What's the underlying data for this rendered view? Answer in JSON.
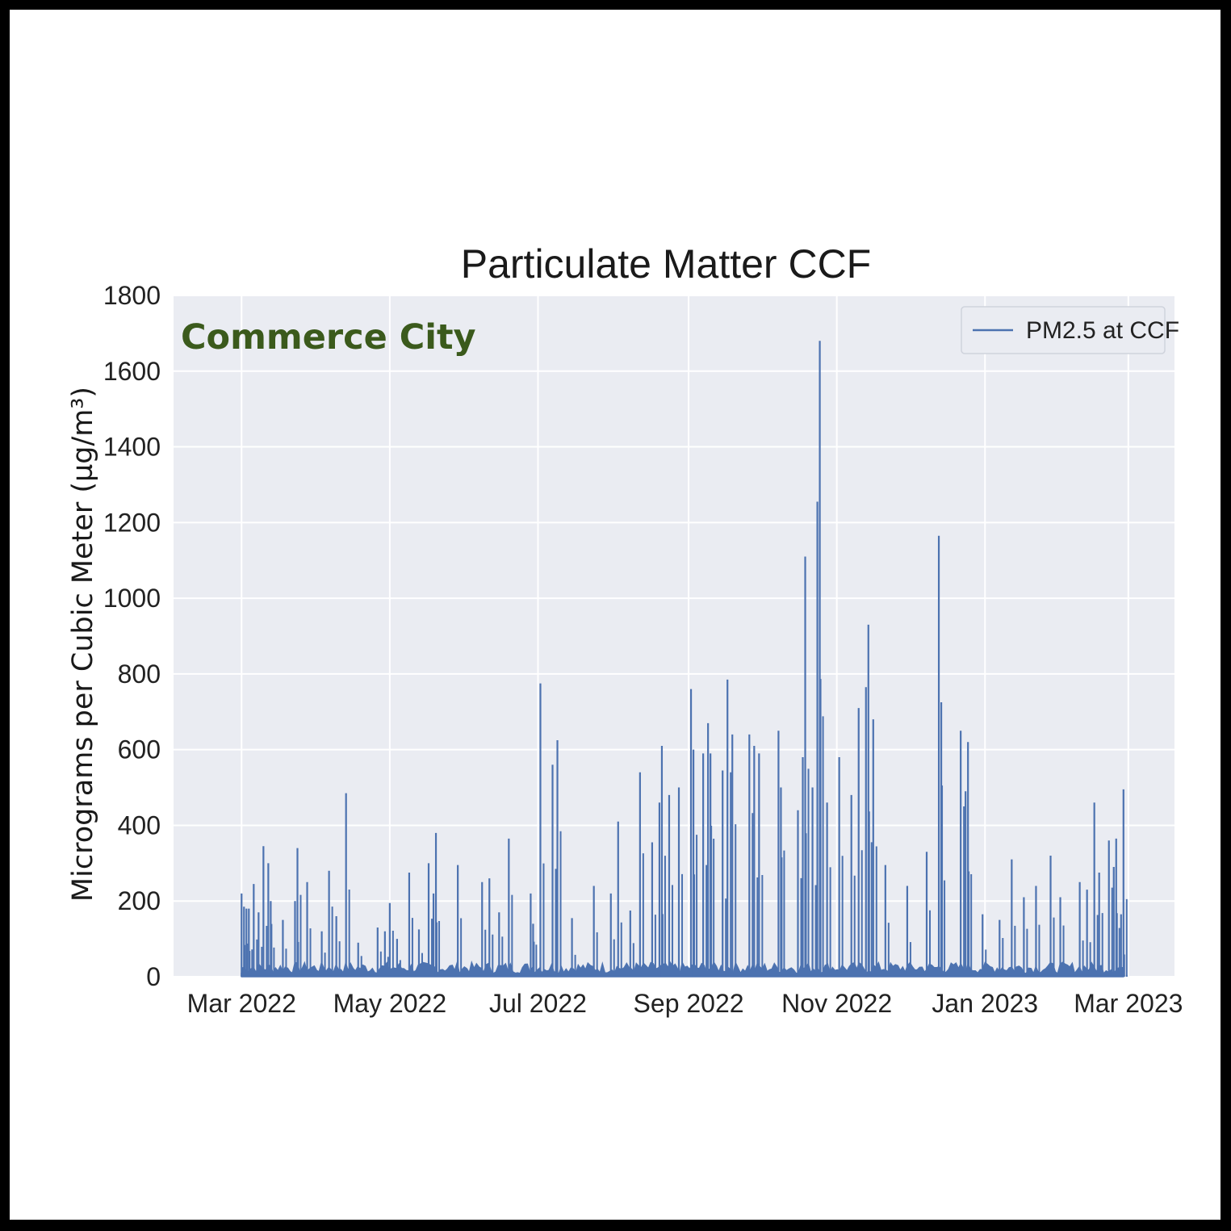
{
  "chart_data": {
    "type": "line",
    "title": "Particulate Matter CCF",
    "ylabel": "Micrograms per Cubic Meter (µg/m³)",
    "xlabel": "",
    "annotation": "Commerce City",
    "ylim": [
      0,
      1800
    ],
    "xlim": [
      "2022-02-01",
      "2023-03-20"
    ],
    "yticks": [
      0,
      200,
      400,
      600,
      800,
      1000,
      1200,
      1400,
      1600,
      1800
    ],
    "xticks": [
      {
        "date": "2022-03-01",
        "label": "Mar 2022"
      },
      {
        "date": "2022-05-01",
        "label": "May 2022"
      },
      {
        "date": "2022-07-01",
        "label": "Jul 2022"
      },
      {
        "date": "2022-09-01",
        "label": "Sep 2022"
      },
      {
        "date": "2022-11-01",
        "label": "Nov 2022"
      },
      {
        "date": "2023-01-01",
        "label": "Jan 2023"
      },
      {
        "date": "2023-03-01",
        "label": "Mar 2023"
      }
    ],
    "grid": true,
    "legend_position": "top-right",
    "series": [
      {
        "name": "PM2.5 at CCF",
        "color": "#4c72b0",
        "points": [
          [
            "2022-03-01",
            10
          ],
          [
            "2022-03-01",
            220
          ],
          [
            "2022-03-02",
            185
          ],
          [
            "2022-03-03",
            180
          ],
          [
            "2022-03-04",
            180
          ],
          [
            "2022-03-06",
            245
          ],
          [
            "2022-03-08",
            170
          ],
          [
            "2022-03-10",
            345
          ],
          [
            "2022-03-12",
            300
          ],
          [
            "2022-03-13",
            200
          ],
          [
            "2022-03-18",
            150
          ],
          [
            "2022-03-23",
            200
          ],
          [
            "2022-03-24",
            340
          ],
          [
            "2022-03-28",
            250
          ],
          [
            "2022-04-03",
            120
          ],
          [
            "2022-04-06",
            280
          ],
          [
            "2022-04-09",
            160
          ],
          [
            "2022-04-13",
            485
          ],
          [
            "2022-04-18",
            90
          ],
          [
            "2022-04-26",
            130
          ],
          [
            "2022-04-29",
            120
          ],
          [
            "2022-05-01",
            195
          ],
          [
            "2022-05-04",
            100
          ],
          [
            "2022-05-09",
            275
          ],
          [
            "2022-05-13",
            125
          ],
          [
            "2022-05-17",
            300
          ],
          [
            "2022-05-19",
            220
          ],
          [
            "2022-05-20",
            380
          ],
          [
            "2022-05-29",
            295
          ],
          [
            "2022-06-08",
            250
          ],
          [
            "2022-06-11",
            260
          ],
          [
            "2022-06-15",
            170
          ],
          [
            "2022-06-19",
            365
          ],
          [
            "2022-06-28",
            220
          ],
          [
            "2022-06-29",
            140
          ],
          [
            "2022-07-02",
            775
          ],
          [
            "2022-07-07",
            560
          ],
          [
            "2022-07-09",
            625
          ],
          [
            "2022-07-15",
            155
          ],
          [
            "2022-07-24",
            240
          ],
          [
            "2022-07-31",
            220
          ],
          [
            "2022-08-03",
            410
          ],
          [
            "2022-08-08",
            175
          ],
          [
            "2022-08-12",
            540
          ],
          [
            "2022-08-17",
            355
          ],
          [
            "2022-08-20",
            460
          ],
          [
            "2022-08-21",
            610
          ],
          [
            "2022-08-24",
            480
          ],
          [
            "2022-08-28",
            500
          ],
          [
            "2022-09-02",
            760
          ],
          [
            "2022-09-03",
            600
          ],
          [
            "2022-09-07",
            590
          ],
          [
            "2022-09-09",
            670
          ],
          [
            "2022-09-10",
            590
          ],
          [
            "2022-09-15",
            545
          ],
          [
            "2022-09-17",
            785
          ],
          [
            "2022-09-19",
            640
          ],
          [
            "2022-09-26",
            640
          ],
          [
            "2022-09-28",
            610
          ],
          [
            "2022-09-30",
            590
          ],
          [
            "2022-10-08",
            650
          ],
          [
            "2022-10-09",
            500
          ],
          [
            "2022-10-16",
            440
          ],
          [
            "2022-10-18",
            580
          ],
          [
            "2022-10-19",
            1110
          ],
          [
            "2022-10-22",
            500
          ],
          [
            "2022-10-24",
            1255
          ],
          [
            "2022-10-25",
            1680
          ],
          [
            "2022-10-28",
            460
          ],
          [
            "2022-11-02",
            580
          ],
          [
            "2022-11-07",
            480
          ],
          [
            "2022-11-10",
            710
          ],
          [
            "2022-11-13",
            765
          ],
          [
            "2022-11-14",
            930
          ],
          [
            "2022-11-16",
            680
          ],
          [
            "2022-11-21",
            295
          ],
          [
            "2022-11-30",
            240
          ],
          [
            "2022-12-08",
            330
          ],
          [
            "2022-12-13",
            1165
          ],
          [
            "2022-12-14",
            725
          ],
          [
            "2022-12-22",
            650
          ],
          [
            "2022-12-24",
            490
          ],
          [
            "2022-12-25",
            620
          ],
          [
            "2022-12-31",
            165
          ],
          [
            "2023-01-07",
            150
          ],
          [
            "2023-01-12",
            310
          ],
          [
            "2023-01-17",
            210
          ],
          [
            "2023-01-22",
            240
          ],
          [
            "2023-01-28",
            320
          ],
          [
            "2023-02-01",
            210
          ],
          [
            "2023-02-09",
            250
          ],
          [
            "2023-02-12",
            230
          ],
          [
            "2023-02-15",
            460
          ],
          [
            "2023-02-17",
            275
          ],
          [
            "2023-02-21",
            360
          ],
          [
            "2023-02-23",
            290
          ],
          [
            "2023-02-24",
            365
          ],
          [
            "2023-02-26",
            165
          ],
          [
            "2023-02-27",
            495
          ],
          [
            "2023-02-27",
            10
          ]
        ]
      }
    ]
  }
}
